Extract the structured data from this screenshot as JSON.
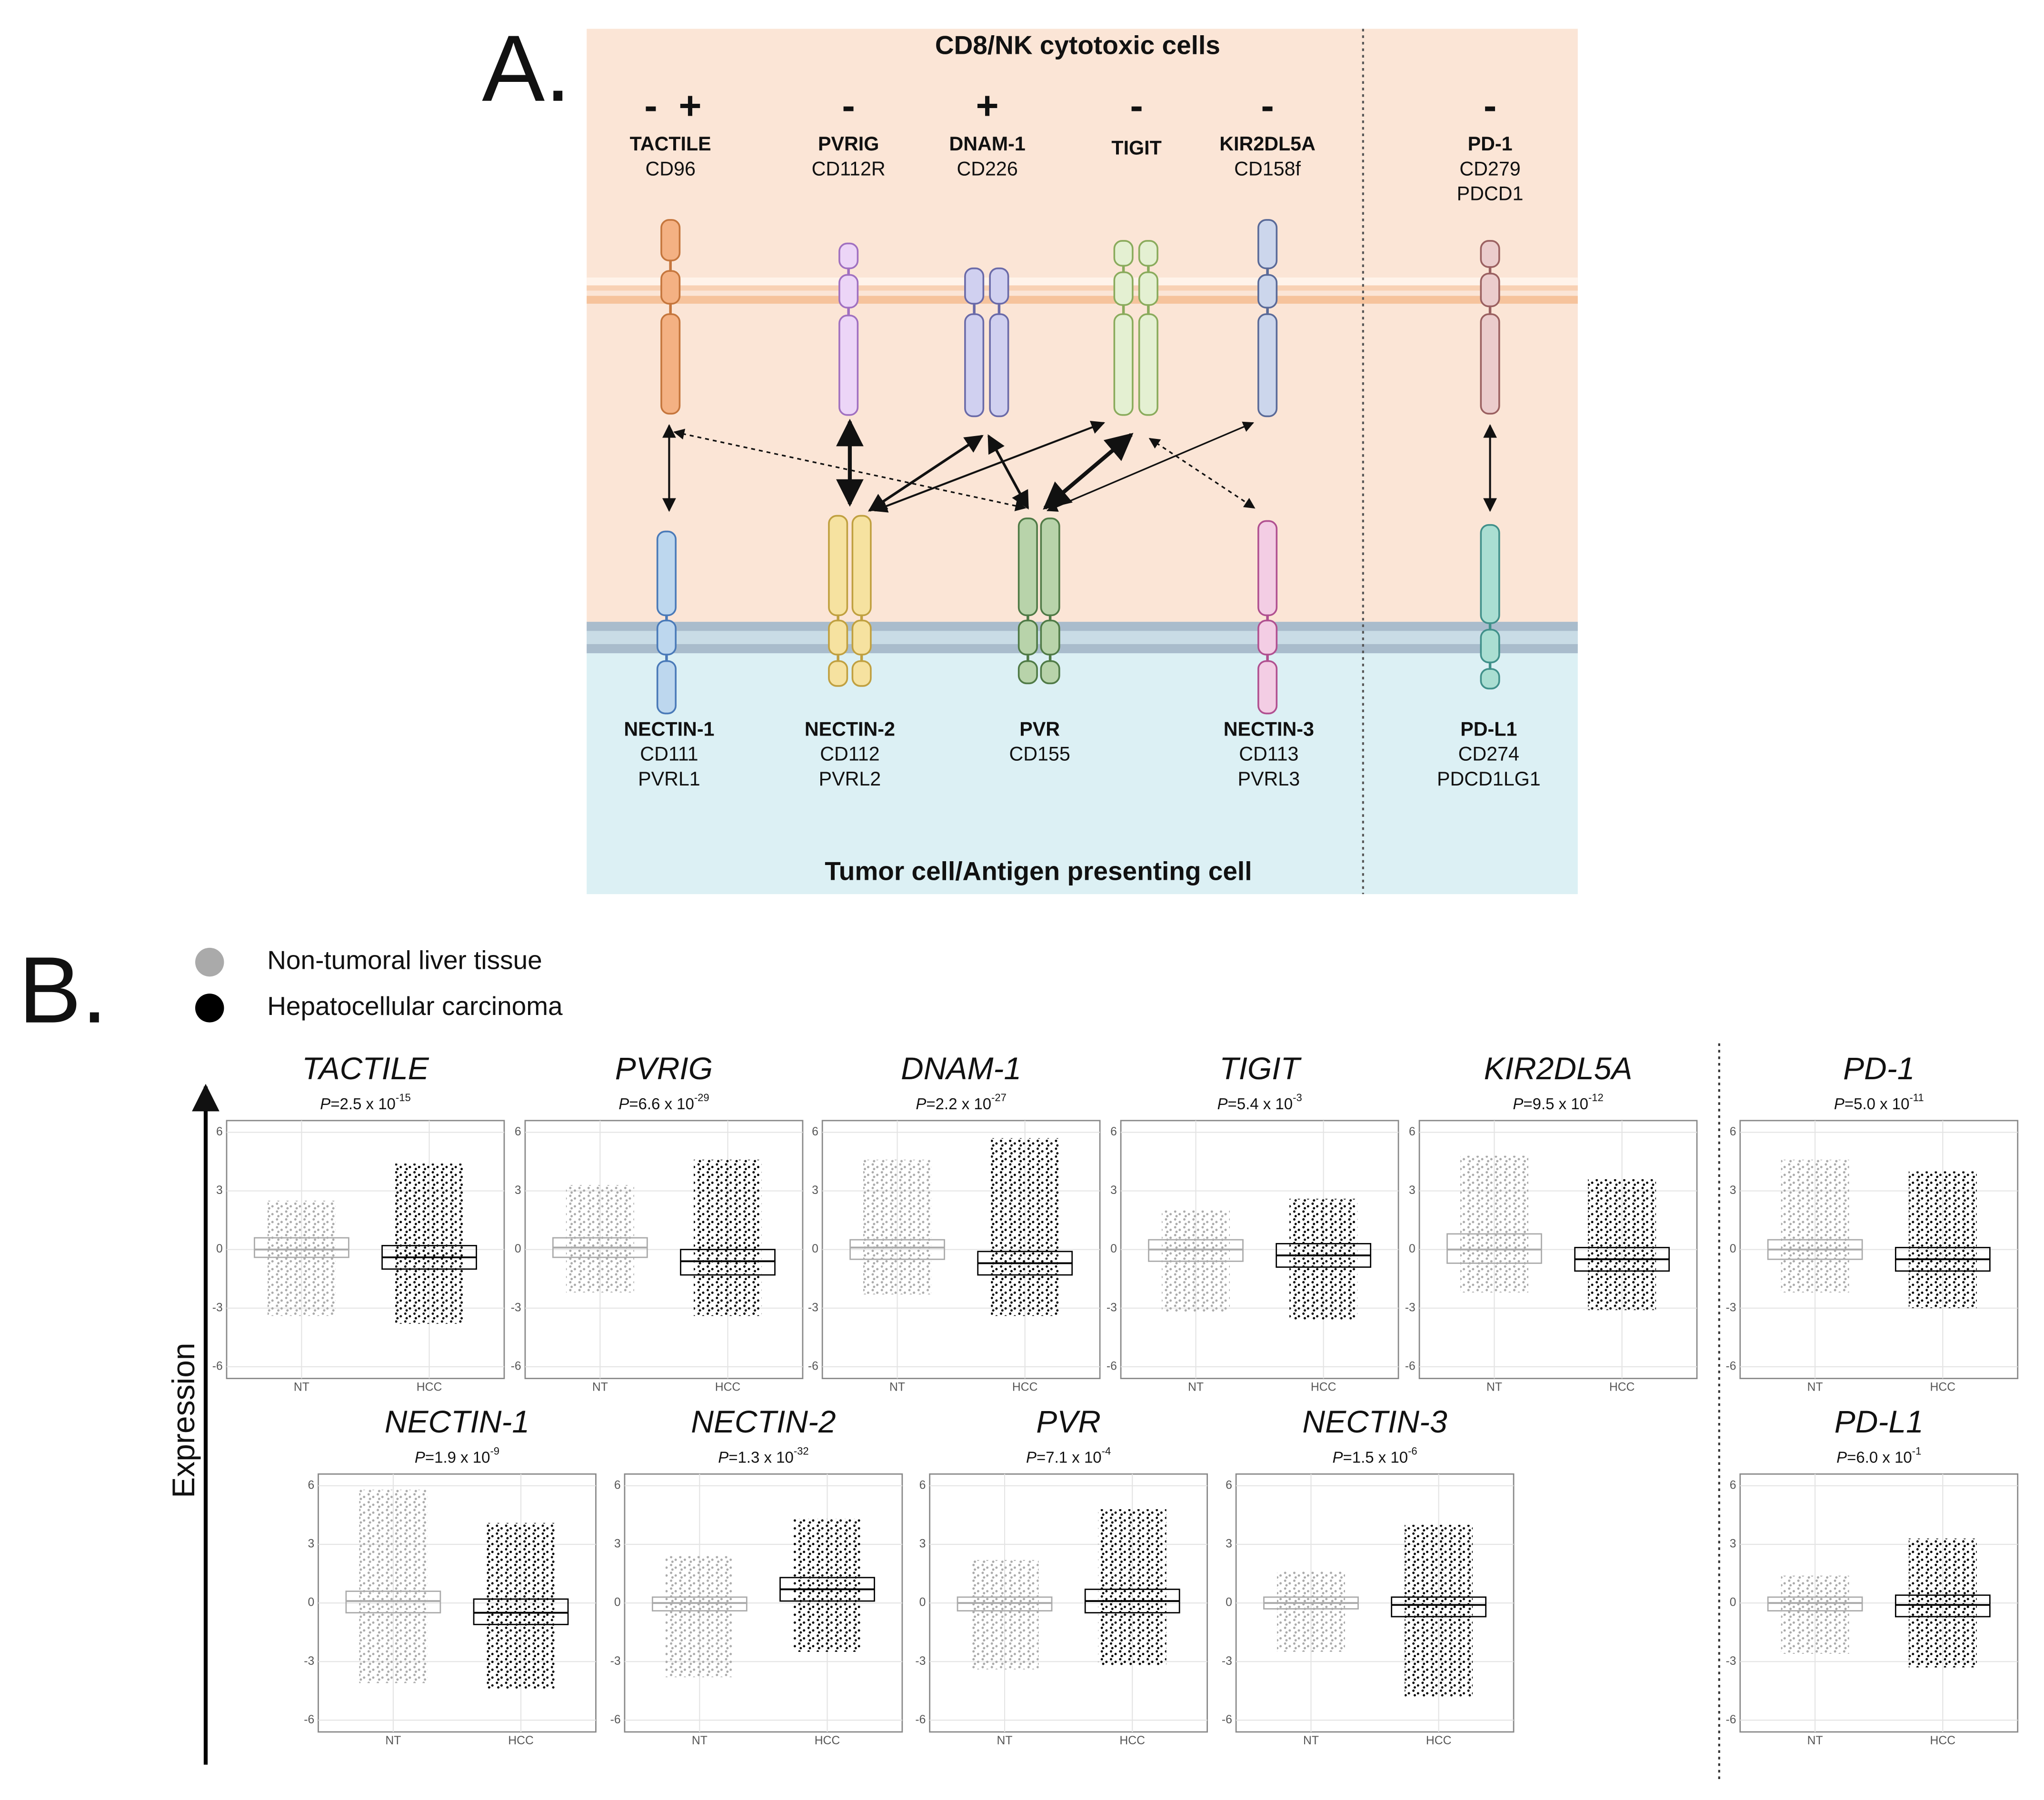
{
  "panel_a": {
    "label": "A.",
    "top_title": "CD8/NK cytotoxic cells",
    "bottom_title": "Tumor cell/Antigen presenting cell",
    "receptors": [
      {
        "signs": [
          "-",
          "+"
        ],
        "name": "TACTILE",
        "aliases": [
          "CD96"
        ]
      },
      {
        "signs": [
          "-"
        ],
        "name": "PVRIG",
        "aliases": [
          "CD112R"
        ]
      },
      {
        "signs": [
          "+"
        ],
        "name": "DNAM-1",
        "aliases": [
          "CD226"
        ]
      },
      {
        "signs": [
          "-"
        ],
        "name": "TIGIT",
        "aliases": []
      },
      {
        "signs": [
          "-"
        ],
        "name": "KIR2DL5A",
        "aliases": [
          "CD158f"
        ]
      },
      {
        "signs": [
          "-"
        ],
        "name": "PD-1",
        "aliases": [
          "CD279",
          "PDCD1"
        ]
      }
    ],
    "ligands": [
      {
        "name": "NECTIN-1",
        "aliases": [
          "CD111",
          "PVRL1"
        ]
      },
      {
        "name": "NECTIN-2",
        "aliases": [
          "CD112",
          "PVRL2"
        ]
      },
      {
        "name": "PVR",
        "aliases": [
          "CD155"
        ]
      },
      {
        "name": "NECTIN-3",
        "aliases": [
          "CD113",
          "PVRL3"
        ]
      },
      {
        "name": "PD-L1",
        "aliases": [
          "CD274",
          "PDCD1LG1"
        ]
      }
    ]
  },
  "panel_b": {
    "label": "B.",
    "y_axis_label": "Expression",
    "legend": [
      {
        "label": "Non-tumoral liver tissue",
        "color": "#aaaaaa"
      },
      {
        "label": "Hepatocellular carcinoma",
        "color": "#000000"
      }
    ],
    "plots": [
      {
        "gene": "TACTILE",
        "p": [
          "P",
          "=2.5 x 10",
          "-15"
        ],
        "categories": [
          "NT",
          "HCC"
        ],
        "ylim": [
          -6.6,
          6.6
        ],
        "yticks": [
          6,
          3,
          0,
          -3,
          -6
        ],
        "grid": true,
        "boxes": [
          {
            "q1": -0.4,
            "median": 0,
            "q3": 0.6,
            "min": -3.4,
            "max": 2.5
          },
          {
            "q1": -1,
            "median": -0.4,
            "q3": 0.2,
            "min": -3.8,
            "max": 4.4
          }
        ]
      },
      {
        "gene": "PVRIG",
        "p": [
          "P",
          "=6.6 x 10",
          "-29"
        ],
        "categories": [
          "NT",
          "HCC"
        ],
        "ylim": [
          -6.6,
          6.6
        ],
        "yticks": [
          6,
          3,
          0,
          -3,
          -6
        ],
        "grid": true,
        "boxes": [
          {
            "q1": -0.4,
            "median": 0.1,
            "q3": 0.6,
            "min": -2.2,
            "max": 3.3
          },
          {
            "q1": -1.3,
            "median": -0.6,
            "q3": 0,
            "min": -3.4,
            "max": 4.6
          }
        ]
      },
      {
        "gene": "DNAM-1",
        "p": [
          "P",
          "=2.2 x 10",
          "-27"
        ],
        "categories": [
          "NT",
          "HCC"
        ],
        "ylim": [
          -6.6,
          6.6
        ],
        "yticks": [
          6,
          3,
          0,
          -3,
          -6
        ],
        "grid": true,
        "boxes": [
          {
            "q1": -0.5,
            "median": 0.1,
            "q3": 0.5,
            "min": -2.3,
            "max": 4.6
          },
          {
            "q1": -1.3,
            "median": -0.7,
            "q3": -0.1,
            "min": -3.4,
            "max": 5.7
          }
        ]
      },
      {
        "gene": "TIGIT",
        "p": [
          "P",
          "=5.4 x 10",
          "-3"
        ],
        "categories": [
          "NT",
          "HCC"
        ],
        "ylim": [
          -6.6,
          6.6
        ],
        "yticks": [
          6,
          3,
          0,
          -3,
          -6
        ],
        "grid": true,
        "boxes": [
          {
            "q1": -0.6,
            "median": 0,
            "q3": 0.5,
            "min": -3.2,
            "max": 2.0
          },
          {
            "q1": -0.9,
            "median": -0.3,
            "q3": 0.3,
            "min": -3.6,
            "max": 2.6
          }
        ]
      },
      {
        "gene": "KIR2DL5A",
        "p": [
          "P",
          "=9.5 x 10",
          "-12"
        ],
        "categories": [
          "NT",
          "HCC"
        ],
        "ylim": [
          -6.6,
          6.6
        ],
        "yticks": [
          6,
          3,
          0,
          -3,
          -6
        ],
        "grid": true,
        "boxes": [
          {
            "q1": -0.7,
            "median": 0,
            "q3": 0.8,
            "min": -2.2,
            "max": 4.8
          },
          {
            "q1": -1.1,
            "median": -0.5,
            "q3": 0.1,
            "min": -3.1,
            "max": 3.6
          }
        ]
      },
      {
        "gene": "PD-1",
        "p": [
          "P",
          "=5.0 x 10",
          "-11"
        ],
        "categories": [
          "NT",
          "HCC"
        ],
        "ylim": [
          -6.6,
          6.6
        ],
        "yticks": [
          6,
          3,
          0,
          -3,
          -6
        ],
        "grid": true,
        "boxes": [
          {
            "q1": -0.5,
            "median": 0,
            "q3": 0.5,
            "min": -2.2,
            "max": 4.6
          },
          {
            "q1": -1.1,
            "median": -0.5,
            "q3": 0.1,
            "min": -3,
            "max": 4
          }
        ]
      },
      {
        "gene": "NECTIN-1",
        "p": [
          "P",
          "=1.9 x 10",
          "-9"
        ],
        "categories": [
          "NT",
          "HCC"
        ],
        "ylim": [
          -6.6,
          6.6
        ],
        "yticks": [
          6,
          3,
          0,
          -3,
          -6
        ],
        "grid": true,
        "boxes": [
          {
            "q1": -0.5,
            "median": 0.1,
            "q3": 0.6,
            "min": -4.1,
            "max": 5.8
          },
          {
            "q1": -1.1,
            "median": -0.5,
            "q3": 0.2,
            "min": -4.4,
            "max": 4.1
          }
        ]
      },
      {
        "gene": "NECTIN-2",
        "p": [
          "P",
          "=1.3 x 10",
          "-32"
        ],
        "categories": [
          "NT",
          "HCC"
        ],
        "ylim": [
          -6.6,
          6.6
        ],
        "yticks": [
          6,
          3,
          0,
          -3,
          -6
        ],
        "grid": true,
        "boxes": [
          {
            "q1": -0.4,
            "median": 0,
            "q3": 0.3,
            "min": -3.8,
            "max": 2.4
          },
          {
            "q1": 0.1,
            "median": 0.7,
            "q3": 1.3,
            "min": -2.5,
            "max": 4.3
          }
        ]
      },
      {
        "gene": "PVR",
        "p": [
          "P",
          "=7.1 x 10",
          "-4"
        ],
        "categories": [
          "NT",
          "HCC"
        ],
        "ylim": [
          -6.6,
          6.6
        ],
        "yticks": [
          6,
          3,
          0,
          -3,
          -6
        ],
        "grid": true,
        "boxes": [
          {
            "q1": -0.4,
            "median": 0,
            "q3": 0.3,
            "min": -3.4,
            "max": 2.2
          },
          {
            "q1": -0.5,
            "median": 0.1,
            "q3": 0.7,
            "min": -3.2,
            "max": 4.8
          }
        ]
      },
      {
        "gene": "NECTIN-3",
        "p": [
          "P",
          "=1.5 x 10",
          "-6"
        ],
        "categories": [
          "NT",
          "HCC"
        ],
        "ylim": [
          -6.6,
          6.6
        ],
        "yticks": [
          6,
          3,
          0,
          -3,
          -6
        ],
        "grid": true,
        "boxes": [
          {
            "q1": -0.3,
            "median": 0,
            "q3": 0.3,
            "min": -2.5,
            "max": 1.6
          },
          {
            "q1": -0.7,
            "median": -0.1,
            "q3": 0.3,
            "min": -4.8,
            "max": 4
          }
        ]
      },
      {
        "gene": "PD-L1",
        "p": [
          "P",
          "=6.0 x 10",
          "-1"
        ],
        "categories": [
          "NT",
          "HCC"
        ],
        "ylim": [
          -6.6,
          6.6
        ],
        "yticks": [
          6,
          3,
          0,
          -3,
          -6
        ],
        "grid": true,
        "boxes": [
          {
            "q1": -0.4,
            "median": 0,
            "q3": 0.3,
            "min": -2.6,
            "max": 1.4
          },
          {
            "q1": -0.7,
            "median": -0.1,
            "q3": 0.4,
            "min": -3.3,
            "max": 3.3
          }
        ]
      }
    ]
  }
}
